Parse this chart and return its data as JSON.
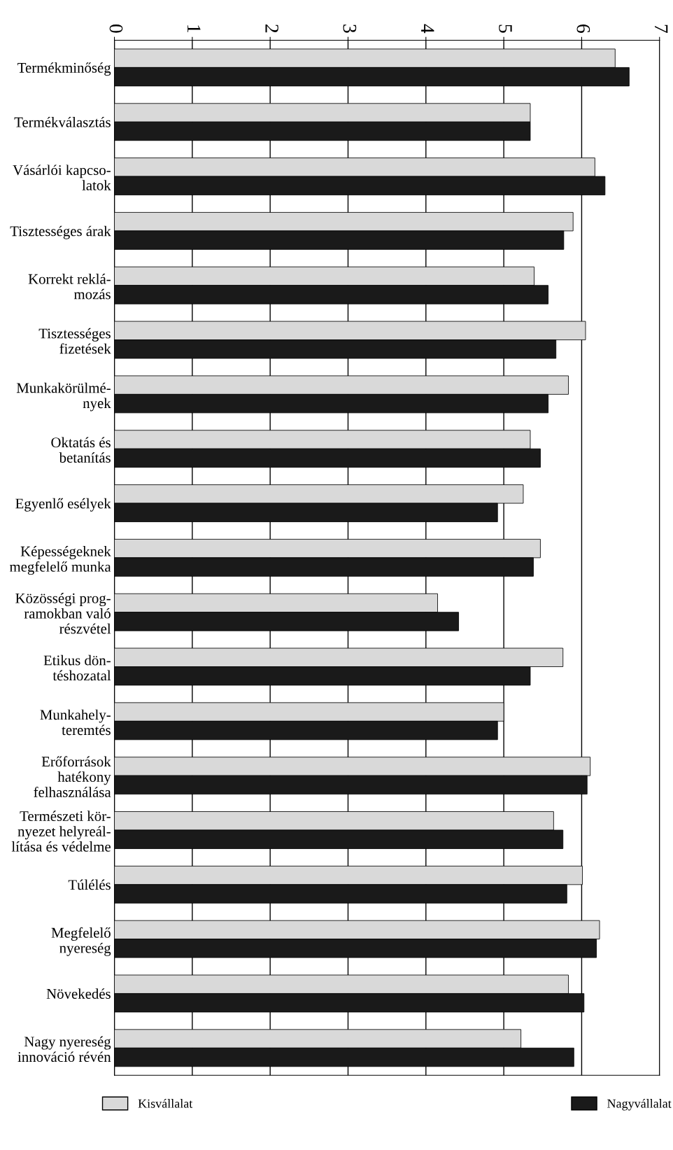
{
  "chart_data": {
    "type": "bar",
    "orientation": "horizontal",
    "categories": [
      "Termékminőség",
      "Termékválasztás",
      "Vásárlói kapcso-\nlatok",
      "Tisztességes árak",
      "Korrekt reklá-\nmozás",
      "Tisztességes\nfizetések",
      "Munkakörülmé-\nnyek",
      "Oktatás és\nbetanítás",
      "Egyenlő esélyek",
      "Képességeknek\nmegfelelő munka",
      "Közösségi prog-\nramokban való\nrészvétel",
      "Etikus dön-\ntéshozatal",
      "Munkahely-\nteremtés",
      "Erőforrások\nhatékony\nfelhasználása",
      "Természeti kör-\nnyezet helyreál-\nlítása és védelme",
      "Túlélés",
      "Megfelelő\nnyereség",
      "Növekedés",
      "Nagy nyereség\ninnováció révén"
    ],
    "series": [
      {
        "name": "Kisvállalat",
        "color": "#d9d9d9",
        "values": [
          6.43,
          5.34,
          6.17,
          5.89,
          5.39,
          6.05,
          5.83,
          5.34,
          5.25,
          5.47,
          4.15,
          5.76,
          5.0,
          6.11,
          5.64,
          6.01,
          6.23,
          5.83,
          5.22
        ]
      },
      {
        "name": "Nagyvállalat",
        "color": "#1a1a1a",
        "values": [
          6.61,
          5.34,
          6.3,
          5.77,
          5.57,
          5.67,
          5.57,
          5.47,
          4.92,
          5.38,
          4.42,
          5.34,
          4.92,
          6.07,
          5.76,
          5.81,
          6.19,
          6.03,
          5.9
        ]
      }
    ],
    "xlim": [
      0,
      7
    ],
    "xticks": [
      0,
      1,
      2,
      3,
      4,
      5,
      6,
      7
    ],
    "grid": "x",
    "legend": "bottom"
  }
}
